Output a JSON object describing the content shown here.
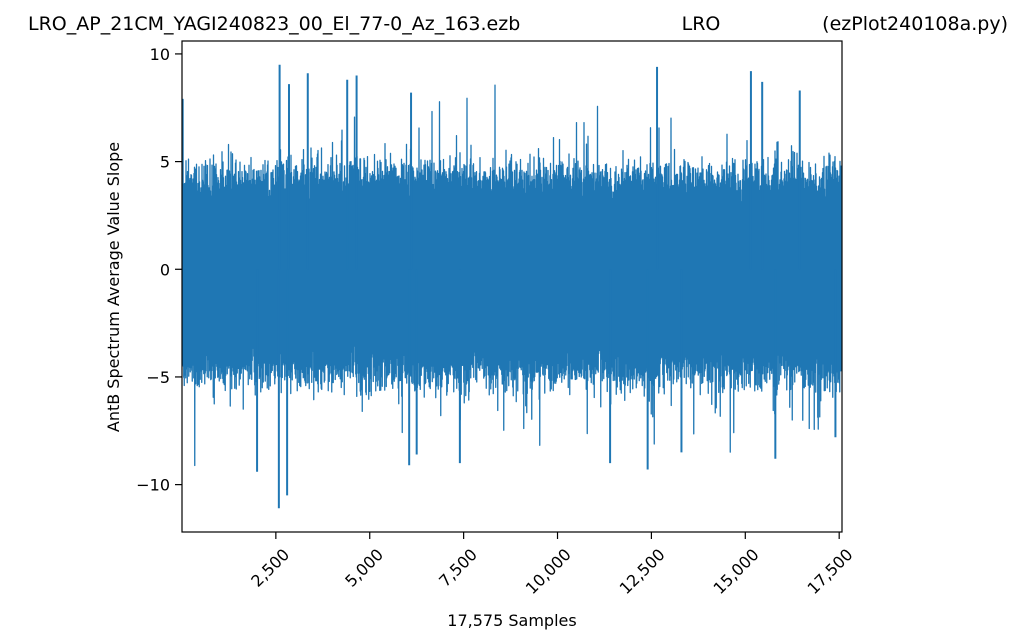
{
  "chart_data": {
    "type": "line",
    "title_left": "LRO_AP_21CM_YAGI240823_00_El_77-0_Az_163.ezb",
    "title_center": "LRO",
    "title_right": "(ezPlot240108a.py)",
    "xlabel": "17,575 Samples",
    "ylabel": "AntB Spectrum Average Value Slope",
    "xlim": [
      1,
      17575
    ],
    "ylim": [
      -12.2,
      10.6
    ],
    "x_ticks": [
      2500,
      5000,
      7500,
      10000,
      12500,
      15000,
      17500
    ],
    "x_tick_labels": [
      "2,500",
      "5,000",
      "7,500",
      "10,000",
      "12,500",
      "15,000",
      "17,500"
    ],
    "y_ticks": [
      -10,
      -5,
      0,
      5,
      10
    ],
    "y_tick_labels": [
      "−10",
      "−5",
      "0",
      "5",
      "10"
    ],
    "n_samples": 17575,
    "series": [
      {
        "color": "#1f77b4",
        "typical_range": [
          -5.5,
          5.0
        ],
        "peaks_high": [
          [
            15,
            7.9
          ],
          [
            2600,
            9.5
          ],
          [
            2850,
            8.6
          ],
          [
            3350,
            9.1
          ],
          [
            4400,
            8.8
          ],
          [
            4650,
            9.0
          ],
          [
            6100,
            8.2
          ],
          [
            12650,
            9.4
          ],
          [
            15150,
            9.2
          ],
          [
            15450,
            8.7
          ],
          [
            16450,
            8.3
          ]
        ],
        "peaks_low": [
          [
            2000,
            -9.4
          ],
          [
            2580,
            -11.1
          ],
          [
            2800,
            -10.5
          ],
          [
            6050,
            -9.1
          ],
          [
            6250,
            -8.6
          ],
          [
            7400,
            -9.0
          ],
          [
            11400,
            -9.0
          ],
          [
            12400,
            -9.3
          ],
          [
            13300,
            -8.5
          ],
          [
            15800,
            -8.8
          ],
          [
            17400,
            -7.8
          ]
        ]
      }
    ],
    "grid": false,
    "legend": false
  }
}
